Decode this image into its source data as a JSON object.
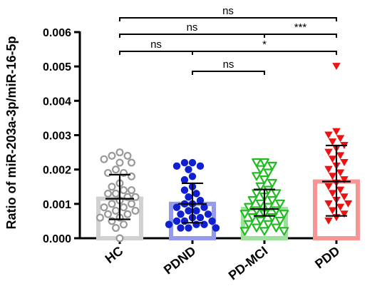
{
  "chart_data": {
    "type": "bar",
    "ylabel": "Ratio of miR-203a-3p/miR-16-5p",
    "xlabel": "",
    "ylim": [
      0,
      0.006
    ],
    "yticks": [
      "0.000",
      "0.001",
      "0.002",
      "0.003",
      "0.004",
      "0.005",
      "0.006"
    ],
    "grid": false,
    "categories": [
      "HC",
      "PDND",
      "PD-MCI",
      "PDD"
    ],
    "series": [
      {
        "category": "HC",
        "mean": 0.00115,
        "sd_low": 0.00055,
        "sd_high": 0.00185,
        "color": "#999999",
        "marker": "circle-open",
        "points": [
          0.0025,
          0.0024,
          0.0024,
          0.0023,
          0.0022,
          0.0022,
          0.002,
          0.0019,
          0.0019,
          0.0018,
          0.0016,
          0.0015,
          0.0014,
          0.0014,
          0.0013,
          0.0013,
          0.0012,
          0.0012,
          0.0011,
          0.001,
          0.001,
          0.0009,
          0.0009,
          0.0008,
          0.0008,
          0.0007,
          0.0007,
          0.0006,
          0.0006,
          0.0005,
          0.0004,
          0.0003,
          0.0
        ]
      },
      {
        "category": "PDND",
        "mean": 0.001,
        "sd_low": 0.00045,
        "sd_high": 0.0016,
        "color": "#1020d0",
        "marker": "circle-filled",
        "points": [
          0.0022,
          0.0022,
          0.0021,
          0.0021,
          0.002,
          0.0018,
          0.0017,
          0.0015,
          0.0014,
          0.0013,
          0.0012,
          0.0011,
          0.001,
          0.001,
          0.0009,
          0.0009,
          0.0008,
          0.0008,
          0.0007,
          0.0007,
          0.0006,
          0.0006,
          0.0005,
          0.0005,
          0.0005,
          0.0004,
          0.0004,
          0.0004,
          0.0003,
          0.0003,
          0.0003
        ]
      },
      {
        "category": "PD-MCI",
        "mean": 0.00085,
        "sd_low": 0.00065,
        "sd_high": 0.00142,
        "color": "#22bb22",
        "marker": "triangle-down-open",
        "points": [
          0.0022,
          0.0022,
          0.0021,
          0.002,
          0.0019,
          0.0018,
          0.0017,
          0.0016,
          0.0015,
          0.0014,
          0.0013,
          0.0013,
          0.0012,
          0.0011,
          0.0011,
          0.001,
          0.001,
          0.0009,
          0.0009,
          0.0008,
          0.0008,
          0.0007,
          0.0007,
          0.0007,
          0.0006,
          0.0006,
          0.0005,
          0.0005,
          0.0004,
          0.0004,
          0.0003,
          0.0003,
          0.0002,
          0.0002,
          0.0002
        ]
      },
      {
        "category": "PDD",
        "mean": 0.00165,
        "sd_low": 0.00065,
        "sd_high": 0.0027,
        "color": "#ee1111",
        "marker": "triangle-down-filled",
        "points": [
          0.005,
          0.0031,
          0.003,
          0.0029,
          0.0028,
          0.0027,
          0.0026,
          0.0025,
          0.0024,
          0.0023,
          0.0022,
          0.0021,
          0.002,
          0.0019,
          0.0018,
          0.0017,
          0.0016,
          0.0015,
          0.0014,
          0.0013,
          0.0012,
          0.0011,
          0.001,
          0.001,
          0.0009,
          0.0008,
          0.0007,
          0.0006,
          0.0005
        ]
      }
    ],
    "significance": [
      {
        "from": "HC",
        "to": "PDD",
        "label": "ns"
      },
      {
        "from": "HC",
        "to": "PD-MCI",
        "label": "ns"
      },
      {
        "from": "PD-MCI",
        "to": "PDD",
        "label": "***"
      },
      {
        "from": "HC",
        "to": "PDND",
        "label": "ns"
      },
      {
        "from": "PDND",
        "to": "PDD",
        "label": "*"
      },
      {
        "from": "PDND",
        "to": "PD-MCI",
        "label": "ns"
      }
    ]
  }
}
